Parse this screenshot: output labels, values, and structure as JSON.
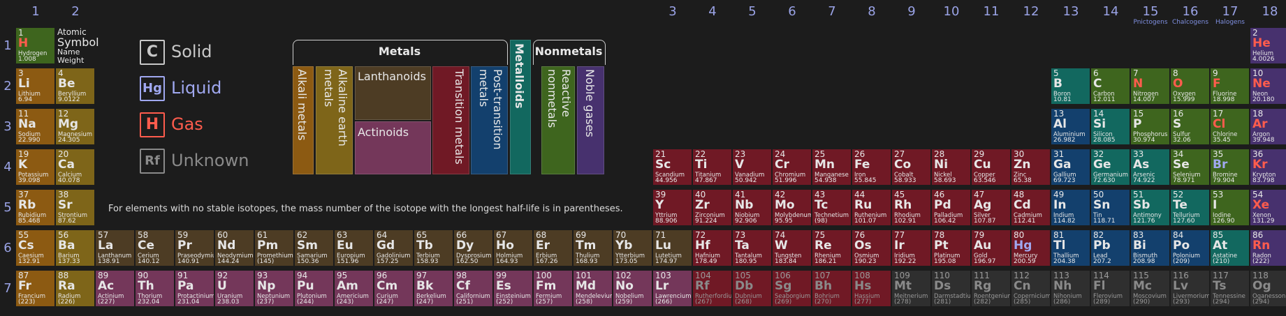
{
  "groups": [
    {
      "n": "1"
    },
    {
      "n": "2"
    },
    {
      "n": "3"
    },
    {
      "n": "4"
    },
    {
      "n": "5"
    },
    {
      "n": "6"
    },
    {
      "n": "7"
    },
    {
      "n": "8"
    },
    {
      "n": "9"
    },
    {
      "n": "10"
    },
    {
      "n": "11"
    },
    {
      "n": "12"
    },
    {
      "n": "13"
    },
    {
      "n": "14"
    },
    {
      "n": "15",
      "name": "Pnictogens"
    },
    {
      "n": "16",
      "name": "Chalcogens"
    },
    {
      "n": "17",
      "name": "Halogens"
    },
    {
      "n": "18"
    }
  ],
  "periods": [
    "1",
    "2",
    "3",
    "4",
    "5",
    "6",
    "7"
  ],
  "key": {
    "atomic": "Atomic",
    "symbol": "Symbol",
    "name": "Name",
    "weight": "Weight"
  },
  "states": [
    {
      "symbol": "C",
      "label": "Solid",
      "color": "#c8c8c8"
    },
    {
      "symbol": "Hg",
      "label": "Liquid",
      "color": "#a0a8f0"
    },
    {
      "symbol": "H",
      "label": "Gas",
      "color": "#ff5c4d"
    },
    {
      "symbol": "Rf",
      "label": "Unknown",
      "color": "#8a8a8a"
    }
  ],
  "legend": {
    "metals": "Metals",
    "nonmetals": "Nonmetals",
    "metalloids": "Metalloids",
    "alkali": "Alkali metals",
    "alkaline": "Alkaline earth metals",
    "lanthanoids": "Lanthanoids",
    "actinoids": "Actinoids",
    "transition": "Transition metals",
    "post_transition": "Post-transition metals",
    "reactive": "Reactive nonmetals",
    "noble": "Noble gases"
  },
  "note": "For elements with no stable isotopes, the mass number of the isotope with the longest half-life is in parentheses.",
  "colors": {
    "alkali": "#8c5a12",
    "alkaline": "#7e6519",
    "lanthanoid": "#4d3c24",
    "actinoid": "#74375a",
    "transition": "#701925",
    "post": "#13406d",
    "metalloid": "#12685f",
    "reactive": "#3e651e",
    "noble": "#47316e",
    "unknown": "#2f2f2f"
  },
  "elements": [
    {
      "z": 1,
      "s": "H",
      "n": "Hydrogen",
      "w": "1.008",
      "c": "reactive",
      "st": "gas"
    },
    {
      "z": 2,
      "s": "He",
      "n": "Helium",
      "w": "4.0026",
      "c": "noble",
      "st": "gas"
    },
    {
      "z": 3,
      "s": "Li",
      "n": "Lithium",
      "w": "6.94",
      "c": "alkali",
      "st": "solid"
    },
    {
      "z": 4,
      "s": "Be",
      "n": "Beryllium",
      "w": "9.0122",
      "c": "alkaline",
      "st": "solid"
    },
    {
      "z": 5,
      "s": "B",
      "n": "Boron",
      "w": "10.81",
      "c": "metalloid",
      "st": "solid"
    },
    {
      "z": 6,
      "s": "C",
      "n": "Carbon",
      "w": "12.011",
      "c": "reactive",
      "st": "solid"
    },
    {
      "z": 7,
      "s": "N",
      "n": "Nitrogen",
      "w": "14.007",
      "c": "reactive",
      "st": "gas"
    },
    {
      "z": 8,
      "s": "O",
      "n": "Oxygen",
      "w": "15.999",
      "c": "reactive",
      "st": "gas"
    },
    {
      "z": 9,
      "s": "F",
      "n": "Fluorine",
      "w": "18.998",
      "c": "reactive",
      "st": "gas"
    },
    {
      "z": 10,
      "s": "Ne",
      "n": "Neon",
      "w": "20.180",
      "c": "noble",
      "st": "gas"
    },
    {
      "z": 11,
      "s": "Na",
      "n": "Sodium",
      "w": "22.990",
      "c": "alkali",
      "st": "solid"
    },
    {
      "z": 12,
      "s": "Mg",
      "n": "Magnesium",
      "w": "24.305",
      "c": "alkaline",
      "st": "solid"
    },
    {
      "z": 13,
      "s": "Al",
      "n": "Aluminium",
      "w": "26.982",
      "c": "post",
      "st": "solid"
    },
    {
      "z": 14,
      "s": "Si",
      "n": "Silicon",
      "w": "28.085",
      "c": "metalloid",
      "st": "solid"
    },
    {
      "z": 15,
      "s": "P",
      "n": "Phosphorus",
      "w": "30.974",
      "c": "reactive",
      "st": "solid"
    },
    {
      "z": 16,
      "s": "S",
      "n": "Sulfur",
      "w": "32.06",
      "c": "reactive",
      "st": "solid"
    },
    {
      "z": 17,
      "s": "Cl",
      "n": "Chlorine",
      "w": "35.45",
      "c": "reactive",
      "st": "gas"
    },
    {
      "z": 18,
      "s": "Ar",
      "n": "Argon",
      "w": "39.948",
      "c": "noble",
      "st": "gas"
    },
    {
      "z": 19,
      "s": "K",
      "n": "Potassium",
      "w": "39.098",
      "c": "alkali",
      "st": "solid"
    },
    {
      "z": 20,
      "s": "Ca",
      "n": "Calcium",
      "w": "40.078",
      "c": "alkaline",
      "st": "solid"
    },
    {
      "z": 21,
      "s": "Sc",
      "n": "Scandium",
      "w": "44.956",
      "c": "transition",
      "st": "solid"
    },
    {
      "z": 22,
      "s": "Ti",
      "n": "Titanium",
      "w": "47.867",
      "c": "transition",
      "st": "solid"
    },
    {
      "z": 23,
      "s": "V",
      "n": "Vanadium",
      "w": "50.942",
      "c": "transition",
      "st": "solid"
    },
    {
      "z": 24,
      "s": "Cr",
      "n": "Chromium",
      "w": "51.996",
      "c": "transition",
      "st": "solid"
    },
    {
      "z": 25,
      "s": "Mn",
      "n": "Manganese",
      "w": "54.938",
      "c": "transition",
      "st": "solid"
    },
    {
      "z": 26,
      "s": "Fe",
      "n": "Iron",
      "w": "55.845",
      "c": "transition",
      "st": "solid"
    },
    {
      "z": 27,
      "s": "Co",
      "n": "Cobalt",
      "w": "58.933",
      "c": "transition",
      "st": "solid"
    },
    {
      "z": 28,
      "s": "Ni",
      "n": "Nickel",
      "w": "58.693",
      "c": "transition",
      "st": "solid"
    },
    {
      "z": 29,
      "s": "Cu",
      "n": "Copper",
      "w": "63.546",
      "c": "transition",
      "st": "solid"
    },
    {
      "z": 30,
      "s": "Zn",
      "n": "Zinc",
      "w": "65.38",
      "c": "transition",
      "st": "solid"
    },
    {
      "z": 31,
      "s": "Ga",
      "n": "Gallium",
      "w": "69.723",
      "c": "post",
      "st": "solid"
    },
    {
      "z": 32,
      "s": "Ge",
      "n": "Germanium",
      "w": "72.630",
      "c": "metalloid",
      "st": "solid"
    },
    {
      "z": 33,
      "s": "As",
      "n": "Arsenic",
      "w": "74.922",
      "c": "metalloid",
      "st": "solid"
    },
    {
      "z": 34,
      "s": "Se",
      "n": "Selenium",
      "w": "78.971",
      "c": "reactive",
      "st": "solid"
    },
    {
      "z": 35,
      "s": "Br",
      "n": "Bromine",
      "w": "79.904",
      "c": "reactive",
      "st": "liquid"
    },
    {
      "z": 36,
      "s": "Kr",
      "n": "Krypton",
      "w": "83.798",
      "c": "noble",
      "st": "gas"
    },
    {
      "z": 37,
      "s": "Rb",
      "n": "Rubidium",
      "w": "85.468",
      "c": "alkali",
      "st": "solid"
    },
    {
      "z": 38,
      "s": "Sr",
      "n": "Strontium",
      "w": "87.62",
      "c": "alkaline",
      "st": "solid"
    },
    {
      "z": 39,
      "s": "Y",
      "n": "Yttrium",
      "w": "88.906",
      "c": "transition",
      "st": "solid"
    },
    {
      "z": 40,
      "s": "Zr",
      "n": "Zirconium",
      "w": "91.224",
      "c": "transition",
      "st": "solid"
    },
    {
      "z": 41,
      "s": "Nb",
      "n": "Niobium",
      "w": "92.906",
      "c": "transition",
      "st": "solid"
    },
    {
      "z": 42,
      "s": "Mo",
      "n": "Molybdenum",
      "w": "95.95",
      "c": "transition",
      "st": "solid"
    },
    {
      "z": 43,
      "s": "Tc",
      "n": "Technetium",
      "w": "(98)",
      "c": "transition",
      "st": "solid"
    },
    {
      "z": 44,
      "s": "Ru",
      "n": "Ruthenium",
      "w": "101.07",
      "c": "transition",
      "st": "solid"
    },
    {
      "z": 45,
      "s": "Rh",
      "n": "Rhodium",
      "w": "102.91",
      "c": "transition",
      "st": "solid"
    },
    {
      "z": 46,
      "s": "Pd",
      "n": "Palladium",
      "w": "106.42",
      "c": "transition",
      "st": "solid"
    },
    {
      "z": 47,
      "s": "Ag",
      "n": "Silver",
      "w": "107.87",
      "c": "transition",
      "st": "solid"
    },
    {
      "z": 48,
      "s": "Cd",
      "n": "Cadmium",
      "w": "112.41",
      "c": "transition",
      "st": "solid"
    },
    {
      "z": 49,
      "s": "In",
      "n": "Indium",
      "w": "114.82",
      "c": "post",
      "st": "solid"
    },
    {
      "z": 50,
      "s": "Sn",
      "n": "Tin",
      "w": "118.71",
      "c": "post",
      "st": "solid"
    },
    {
      "z": 51,
      "s": "Sb",
      "n": "Antimony",
      "w": "121.76",
      "c": "metalloid",
      "st": "solid"
    },
    {
      "z": 52,
      "s": "Te",
      "n": "Tellurium",
      "w": "127.60",
      "c": "metalloid",
      "st": "solid"
    },
    {
      "z": 53,
      "s": "I",
      "n": "Iodine",
      "w": "126.90",
      "c": "reactive",
      "st": "solid"
    },
    {
      "z": 54,
      "s": "Xe",
      "n": "Xenon",
      "w": "131.29",
      "c": "noble",
      "st": "gas"
    },
    {
      "z": 55,
      "s": "Cs",
      "n": "Caesium",
      "w": "132.91",
      "c": "alkali",
      "st": "solid"
    },
    {
      "z": 56,
      "s": "Ba",
      "n": "Barium",
      "w": "137.33",
      "c": "alkaline",
      "st": "solid"
    },
    {
      "z": 57,
      "s": "La",
      "n": "Lanthanum",
      "w": "138.91",
      "c": "lanthanoid",
      "st": "solid"
    },
    {
      "z": 58,
      "s": "Ce",
      "n": "Cerium",
      "w": "140.12",
      "c": "lanthanoid",
      "st": "solid"
    },
    {
      "z": 59,
      "s": "Pr",
      "n": "Praseodymium",
      "w": "140.91",
      "c": "lanthanoid",
      "st": "solid"
    },
    {
      "z": 60,
      "s": "Nd",
      "n": "Neodymium",
      "w": "144.24",
      "c": "lanthanoid",
      "st": "solid"
    },
    {
      "z": 61,
      "s": "Pm",
      "n": "Promethium",
      "w": "(145)",
      "c": "lanthanoid",
      "st": "solid"
    },
    {
      "z": 62,
      "s": "Sm",
      "n": "Samarium",
      "w": "150.36",
      "c": "lanthanoid",
      "st": "solid"
    },
    {
      "z": 63,
      "s": "Eu",
      "n": "Europium",
      "w": "151.96",
      "c": "lanthanoid",
      "st": "solid"
    },
    {
      "z": 64,
      "s": "Gd",
      "n": "Gadolinium",
      "w": "157.25",
      "c": "lanthanoid",
      "st": "solid"
    },
    {
      "z": 65,
      "s": "Tb",
      "n": "Terbium",
      "w": "158.93",
      "c": "lanthanoid",
      "st": "solid"
    },
    {
      "z": 66,
      "s": "Dy",
      "n": "Dysprosium",
      "w": "162.50",
      "c": "lanthanoid",
      "st": "solid"
    },
    {
      "z": 67,
      "s": "Ho",
      "n": "Holmium",
      "w": "164.93",
      "c": "lanthanoid",
      "st": "solid"
    },
    {
      "z": 68,
      "s": "Er",
      "n": "Erbium",
      "w": "167.26",
      "c": "lanthanoid",
      "st": "solid"
    },
    {
      "z": 69,
      "s": "Tm",
      "n": "Thulium",
      "w": "168.93",
      "c": "lanthanoid",
      "st": "solid"
    },
    {
      "z": 70,
      "s": "Yb",
      "n": "Ytterbium",
      "w": "173.05",
      "c": "lanthanoid",
      "st": "solid"
    },
    {
      "z": 71,
      "s": "Lu",
      "n": "Lutetium",
      "w": "174.97",
      "c": "lanthanoid",
      "st": "solid"
    },
    {
      "z": 72,
      "s": "Hf",
      "n": "Hafnium",
      "w": "178.49",
      "c": "transition",
      "st": "solid"
    },
    {
      "z": 73,
      "s": "Ta",
      "n": "Tantalum",
      "w": "180.95",
      "c": "transition",
      "st": "solid"
    },
    {
      "z": 74,
      "s": "W",
      "n": "Tungsten",
      "w": "183.84",
      "c": "transition",
      "st": "solid"
    },
    {
      "z": 75,
      "s": "Re",
      "n": "Rhenium",
      "w": "186.21",
      "c": "transition",
      "st": "solid"
    },
    {
      "z": 76,
      "s": "Os",
      "n": "Osmium",
      "w": "190.23",
      "c": "transition",
      "st": "solid"
    },
    {
      "z": 77,
      "s": "Ir",
      "n": "Iridium",
      "w": "192.22",
      "c": "transition",
      "st": "solid"
    },
    {
      "z": 78,
      "s": "Pt",
      "n": "Platinum",
      "w": "195.08",
      "c": "transition",
      "st": "solid"
    },
    {
      "z": 79,
      "s": "Au",
      "n": "Gold",
      "w": "196.97",
      "c": "transition",
      "st": "solid"
    },
    {
      "z": 80,
      "s": "Hg",
      "n": "Mercury",
      "w": "200.59",
      "c": "transition",
      "st": "liquid"
    },
    {
      "z": 81,
      "s": "Tl",
      "n": "Thallium",
      "w": "204.38",
      "c": "post",
      "st": "solid"
    },
    {
      "z": 82,
      "s": "Pb",
      "n": "Lead",
      "w": "207.2",
      "c": "post",
      "st": "solid"
    },
    {
      "z": 83,
      "s": "Bi",
      "n": "Bismuth",
      "w": "208.98",
      "c": "post",
      "st": "solid"
    },
    {
      "z": 84,
      "s": "Po",
      "n": "Polonium",
      "w": "(209)",
      "c": "post",
      "st": "solid"
    },
    {
      "z": 85,
      "s": "At",
      "n": "Astatine",
      "w": "(210)",
      "c": "metalloid",
      "st": "solid"
    },
    {
      "z": 86,
      "s": "Rn",
      "n": "Radon",
      "w": "(222)",
      "c": "noble",
      "st": "gas"
    },
    {
      "z": 87,
      "s": "Fr",
      "n": "Francium",
      "w": "(223)",
      "c": "alkali",
      "st": "solid"
    },
    {
      "z": 88,
      "s": "Ra",
      "n": "Radium",
      "w": "(226)",
      "c": "alkaline",
      "st": "solid"
    },
    {
      "z": 89,
      "s": "Ac",
      "n": "Actinium",
      "w": "(227)",
      "c": "actinoid",
      "st": "solid"
    },
    {
      "z": 90,
      "s": "Th",
      "n": "Thorium",
      "w": "232.04",
      "c": "actinoid",
      "st": "solid"
    },
    {
      "z": 91,
      "s": "Pa",
      "n": "Protactinium",
      "w": "231.04",
      "c": "actinoid",
      "st": "solid"
    },
    {
      "z": 92,
      "s": "U",
      "n": "Uranium",
      "w": "238.03",
      "c": "actinoid",
      "st": "solid"
    },
    {
      "z": 93,
      "s": "Np",
      "n": "Neptunium",
      "w": "(237)",
      "c": "actinoid",
      "st": "solid"
    },
    {
      "z": 94,
      "s": "Pu",
      "n": "Plutonium",
      "w": "(244)",
      "c": "actinoid",
      "st": "solid"
    },
    {
      "z": 95,
      "s": "Am",
      "n": "Americium",
      "w": "(243)",
      "c": "actinoid",
      "st": "solid"
    },
    {
      "z": 96,
      "s": "Cm",
      "n": "Curium",
      "w": "(247)",
      "c": "actinoid",
      "st": "solid"
    },
    {
      "z": 97,
      "s": "Bk",
      "n": "Berkelium",
      "w": "(247)",
      "c": "actinoid",
      "st": "solid"
    },
    {
      "z": 98,
      "s": "Cf",
      "n": "Californium",
      "w": "(251)",
      "c": "actinoid",
      "st": "solid"
    },
    {
      "z": 99,
      "s": "Es",
      "n": "Einsteinium",
      "w": "(252)",
      "c": "actinoid",
      "st": "solid"
    },
    {
      "z": 100,
      "s": "Fm",
      "n": "Fermium",
      "w": "(257)",
      "c": "actinoid",
      "st": "solid"
    },
    {
      "z": 101,
      "s": "Md",
      "n": "Mendelevium",
      "w": "(258)",
      "c": "actinoid",
      "st": "solid"
    },
    {
      "z": 102,
      "s": "No",
      "n": "Nobelium",
      "w": "(259)",
      "c": "actinoid",
      "st": "solid"
    },
    {
      "z": 103,
      "s": "Lr",
      "n": "Lawrencium",
      "w": "(266)",
      "c": "actinoid",
      "st": "solid"
    },
    {
      "z": 104,
      "s": "Rf",
      "n": "Rutherfordium",
      "w": "(267)",
      "c": "transition",
      "st": "unknown"
    },
    {
      "z": 105,
      "s": "Db",
      "n": "Dubnium",
      "w": "(268)",
      "c": "transition",
      "st": "unknown"
    },
    {
      "z": 106,
      "s": "Sg",
      "n": "Seaborgium",
      "w": "(269)",
      "c": "transition",
      "st": "unknown"
    },
    {
      "z": 107,
      "s": "Bh",
      "n": "Bohrium",
      "w": "(270)",
      "c": "transition",
      "st": "unknown"
    },
    {
      "z": 108,
      "s": "Hs",
      "n": "Hassium",
      "w": "(277)",
      "c": "transition",
      "st": "unknown"
    },
    {
      "z": 109,
      "s": "Mt",
      "n": "Meitnerium",
      "w": "(278)",
      "c": "unknown",
      "st": "unknown"
    },
    {
      "z": 110,
      "s": "Ds",
      "n": "Darmstadtium",
      "w": "(281)",
      "c": "unknown",
      "st": "unknown"
    },
    {
      "z": 111,
      "s": "Rg",
      "n": "Roentgenium",
      "w": "(282)",
      "c": "unknown",
      "st": "unknown"
    },
    {
      "z": 112,
      "s": "Cn",
      "n": "Copernicium",
      "w": "(285)",
      "c": "unknown",
      "st": "unknown"
    },
    {
      "z": 113,
      "s": "Nh",
      "n": "Nihonium",
      "w": "(286)",
      "c": "unknown",
      "st": "unknown"
    },
    {
      "z": 114,
      "s": "Fl",
      "n": "Flerovium",
      "w": "(289)",
      "c": "unknown",
      "st": "unknown"
    },
    {
      "z": 115,
      "s": "Mc",
      "n": "Moscovium",
      "w": "(290)",
      "c": "unknown",
      "st": "unknown"
    },
    {
      "z": 116,
      "s": "Lv",
      "n": "Livermorium",
      "w": "(293)",
      "c": "unknown",
      "st": "unknown"
    },
    {
      "z": 117,
      "s": "Ts",
      "n": "Tennessine",
      "w": "(294)",
      "c": "unknown",
      "st": "unknown"
    },
    {
      "z": 118,
      "s": "Og",
      "n": "Oganesson",
      "w": "(294)",
      "c": "unknown",
      "st": "unknown"
    }
  ]
}
